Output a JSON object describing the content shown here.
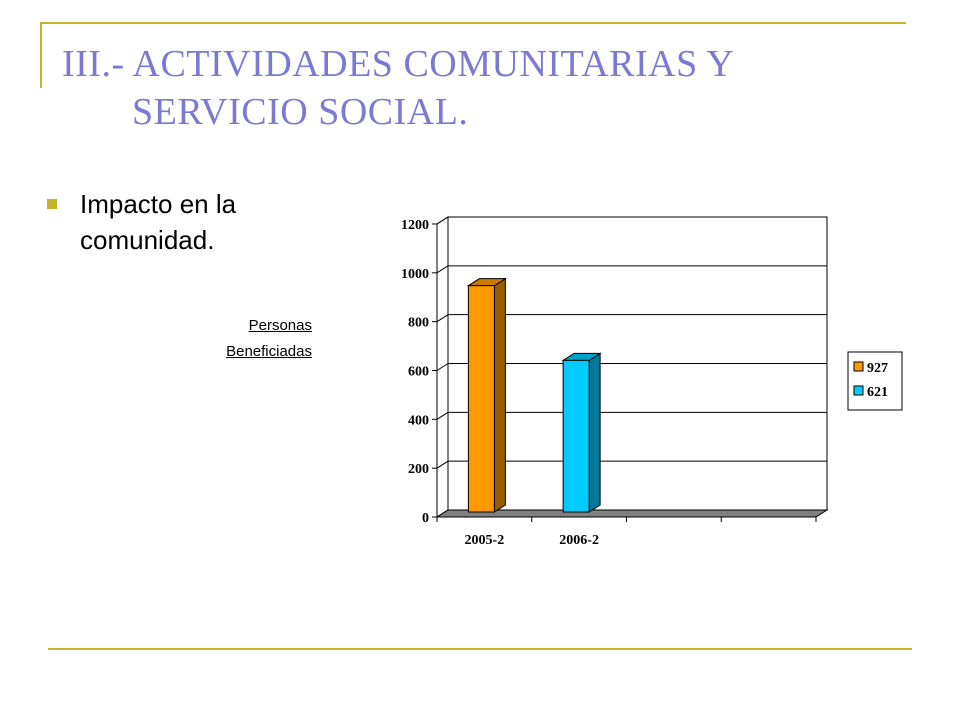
{
  "slide": {
    "title_line1": "III.- ACTIVIDADES COMUNITARIAS Y",
    "title_line2": "SERVICIO SOCIAL.",
    "bullet_text": "Impacto en la comunidad.",
    "note_line1": "Personas",
    "note_line2": "Beneficiadas"
  },
  "colors": {
    "accent": "#c9b22e",
    "title": "#7a7ad4",
    "series_a": "#ff9900",
    "series_b": "#00ccff"
  },
  "chart_data": {
    "type": "bar",
    "style": "3d",
    "categories": [
      "2005-2",
      "2006-2"
    ],
    "series": [
      {
        "name": "927",
        "values": [
          927,
          null
        ],
        "color": "#ff9900"
      },
      {
        "name": "621",
        "values": [
          null,
          621
        ],
        "color": "#00ccff"
      }
    ],
    "yticks": [
      "0",
      "200",
      "400",
      "600",
      "800",
      "1000",
      "1200"
    ],
    "ylim": [
      0,
      1200
    ],
    "grid": true,
    "legend_position": "right"
  }
}
